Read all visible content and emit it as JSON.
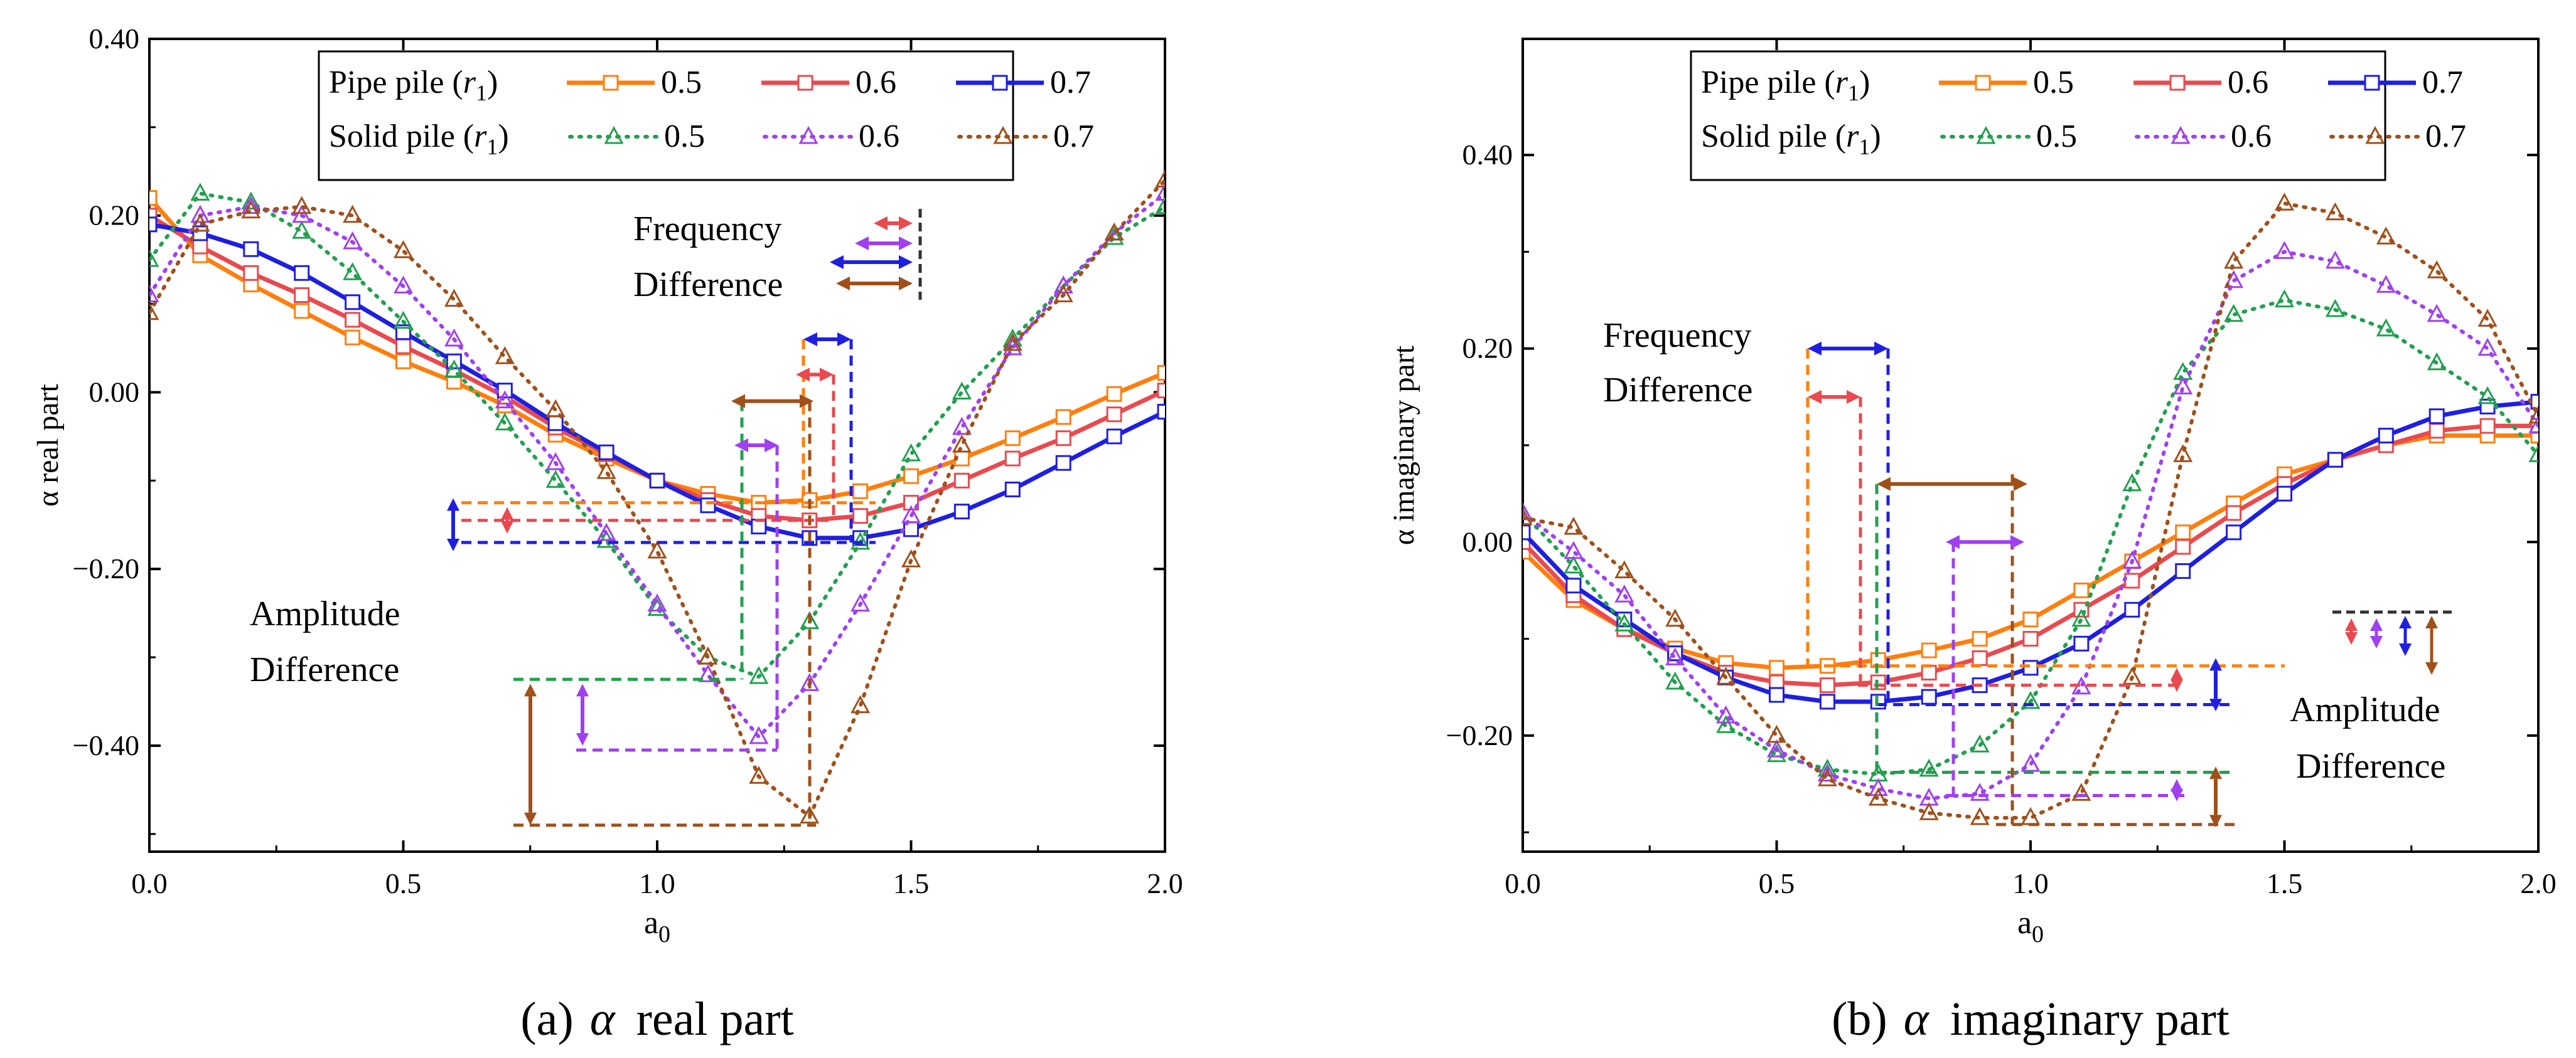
{
  "legend": {
    "pipe_label": "Pipe pile (",
    "solid_label": "Solid pile (",
    "param": "r",
    "param_sub": "1",
    "close": ")",
    "values": [
      "0.5",
      "0.6",
      "0.7"
    ]
  },
  "colors": {
    "c05_pipe": "#FF7F0E",
    "c06_pipe": "#E84A4F",
    "c07_pipe": "#1F1FE0",
    "c05_solid": "#22A050",
    "c06_solid": "#A040F0",
    "c07_solid": "#A0501A"
  },
  "chart_data": [
    {
      "type": "line",
      "panel": "a",
      "caption": {
        "letter": "(a)",
        "alpha": "α",
        "text": "real part"
      },
      "xlabel": "a",
      "xlabel_sub": "0",
      "ylabel": "α real part",
      "xlim": [
        0,
        2.0
      ],
      "ylim": [
        -0.52,
        0.4
      ],
      "xticks": [
        "0.0",
        "0.5",
        "1.0",
        "1.5",
        "2.0"
      ],
      "xtick_values": [
        0,
        0.5,
        1.0,
        1.5,
        2.0
      ],
      "yticks": [
        "0.40",
        "0.20",
        "0.00",
        "−0.20",
        "−0.40"
      ],
      "ytick_values": [
        0.4,
        0.2,
        0,
        -0.2,
        -0.4
      ],
      "x": [
        0,
        0.1,
        0.2,
        0.3,
        0.4,
        0.5,
        0.6,
        0.7,
        0.8,
        0.9,
        1.0,
        1.1,
        1.2,
        1.3,
        1.4,
        1.5,
        1.6,
        1.7,
        1.8,
        1.9,
        2.0
      ],
      "series": [
        {
          "name": "Pipe pile r1=0.5",
          "style": "pipe",
          "color_key": "c05_pipe",
          "values": [
            0.22,
            0.155,
            0.122,
            0.092,
            0.062,
            0.035,
            0.012,
            -0.015,
            -0.048,
            -0.075,
            -0.1,
            -0.115,
            -0.125,
            -0.122,
            -0.112,
            -0.095,
            -0.075,
            -0.052,
            -0.028,
            -0.002,
            0.022
          ]
        },
        {
          "name": "Pipe pile r1=0.6",
          "style": "pipe",
          "color_key": "c06_pipe",
          "values": [
            0.2,
            0.165,
            0.135,
            0.11,
            0.082,
            0.052,
            0.025,
            -0.005,
            -0.04,
            -0.07,
            -0.1,
            -0.122,
            -0.14,
            -0.145,
            -0.14,
            -0.125,
            -0.1,
            -0.075,
            -0.052,
            -0.025,
            0.002
          ]
        },
        {
          "name": "Pipe pile r1=0.7",
          "style": "pipe",
          "color_key": "c07_pipe",
          "values": [
            0.19,
            0.18,
            0.162,
            0.135,
            0.102,
            0.068,
            0.035,
            0.002,
            -0.035,
            -0.068,
            -0.1,
            -0.128,
            -0.152,
            -0.165,
            -0.165,
            -0.155,
            -0.135,
            -0.11,
            -0.08,
            -0.05,
            -0.022
          ]
        },
        {
          "name": "Solid pile r1=0.5",
          "style": "solid",
          "color_key": "c05_solid",
          "values": [
            0.15,
            0.225,
            0.215,
            0.182,
            0.135,
            0.08,
            0.025,
            -0.035,
            -0.1,
            -0.168,
            -0.245,
            -0.3,
            -0.322,
            -0.26,
            -0.17,
            -0.07,
            0.0,
            0.06,
            0.12,
            0.175,
            0.21
          ]
        },
        {
          "name": "Solid pile r1=0.6",
          "style": "solid",
          "color_key": "c06_solid",
          "values": [
            0.11,
            0.2,
            0.21,
            0.2,
            0.17,
            0.12,
            0.06,
            -0.01,
            -0.08,
            -0.16,
            -0.24,
            -0.32,
            -0.39,
            -0.33,
            -0.24,
            -0.14,
            -0.04,
            0.05,
            0.12,
            0.18,
            0.225
          ]
        },
        {
          "name": "Solid pile r1=0.7",
          "style": "solid",
          "color_key": "c07_solid",
          "values": [
            0.09,
            0.19,
            0.205,
            0.21,
            0.2,
            0.16,
            0.105,
            0.04,
            -0.02,
            -0.09,
            -0.18,
            -0.3,
            -0.435,
            -0.48,
            -0.355,
            -0.19,
            -0.06,
            0.055,
            0.11,
            0.18,
            0.24
          ]
        }
      ],
      "annotations": {
        "frequency": "Frequency\nDifference",
        "amplitude": "Amplitude\nDifference"
      }
    },
    {
      "type": "line",
      "panel": "b",
      "caption": {
        "letter": "(b)",
        "alpha": "α",
        "text": "imaginary part"
      },
      "xlabel": "a",
      "xlabel_sub": "0",
      "ylabel": "α imaginary part",
      "xlim": [
        0,
        2.0
      ],
      "ylim": [
        -0.32,
        0.52
      ],
      "xticks": [
        "0.0",
        "0.5",
        "1.0",
        "1.5",
        "2.0"
      ],
      "xtick_values": [
        0,
        0.5,
        1.0,
        1.5,
        2.0
      ],
      "yticks": [
        "0.40",
        "0.20",
        "0.00",
        "−0.20"
      ],
      "ytick_values": [
        0.4,
        0.2,
        0,
        -0.2
      ],
      "x": [
        0,
        0.1,
        0.2,
        0.3,
        0.4,
        0.5,
        0.6,
        0.7,
        0.8,
        0.9,
        1.0,
        1.1,
        1.2,
        1.3,
        1.4,
        1.5,
        1.6,
        1.7,
        1.8,
        1.9,
        2.0
      ],
      "series": [
        {
          "name": "Pipe pile r1=0.5",
          "style": "pipe",
          "color_key": "c05_pipe",
          "values": [
            -0.01,
            -0.06,
            -0.09,
            -0.11,
            -0.125,
            -0.13,
            -0.128,
            -0.122,
            -0.112,
            -0.1,
            -0.08,
            -0.05,
            -0.02,
            0.01,
            0.04,
            0.07,
            0.085,
            0.1,
            0.11,
            0.11,
            0.11
          ]
        },
        {
          "name": "Pipe pile r1=0.6",
          "style": "pipe",
          "color_key": "c06_pipe",
          "values": [
            0.0,
            -0.055,
            -0.09,
            -0.115,
            -0.135,
            -0.145,
            -0.148,
            -0.145,
            -0.135,
            -0.12,
            -0.1,
            -0.07,
            -0.04,
            -0.005,
            0.03,
            0.06,
            0.085,
            0.1,
            0.115,
            0.12,
            0.12
          ]
        },
        {
          "name": "Pipe pile r1=0.7",
          "style": "pipe",
          "color_key": "c07_pipe",
          "values": [
            0.01,
            -0.045,
            -0.08,
            -0.115,
            -0.14,
            -0.158,
            -0.165,
            -0.165,
            -0.16,
            -0.148,
            -0.13,
            -0.105,
            -0.07,
            -0.03,
            0.01,
            0.05,
            0.085,
            0.11,
            0.13,
            0.14,
            0.145
          ]
        },
        {
          "name": "Solid pile r1=0.5",
          "style": "solid",
          "color_key": "c05_solid",
          "values": [
            0.03,
            -0.025,
            -0.085,
            -0.145,
            -0.19,
            -0.22,
            -0.235,
            -0.24,
            -0.235,
            -0.21,
            -0.165,
            -0.08,
            0.06,
            0.175,
            0.235,
            0.25,
            0.24,
            0.22,
            0.185,
            0.15,
            0.09
          ]
        },
        {
          "name": "Solid pile r1=0.6",
          "style": "solid",
          "color_key": "c06_solid",
          "values": [
            0.03,
            -0.01,
            -0.055,
            -0.12,
            -0.18,
            -0.215,
            -0.24,
            -0.255,
            -0.265,
            -0.26,
            -0.23,
            -0.15,
            -0.02,
            0.16,
            0.27,
            0.3,
            0.29,
            0.265,
            0.235,
            0.2,
            0.12
          ]
        },
        {
          "name": "Solid pile r1=0.7",
          "style": "solid",
          "color_key": "c07_solid",
          "values": [
            0.025,
            0.015,
            -0.03,
            -0.08,
            -0.14,
            -0.2,
            -0.245,
            -0.265,
            -0.28,
            -0.285,
            -0.285,
            -0.26,
            -0.14,
            0.09,
            0.29,
            0.35,
            0.34,
            0.315,
            0.28,
            0.23,
            0.13
          ]
        }
      ],
      "annotations": {
        "frequency": "Frequency\nDifference",
        "amplitude": "Amplitude\nDifference"
      }
    }
  ]
}
